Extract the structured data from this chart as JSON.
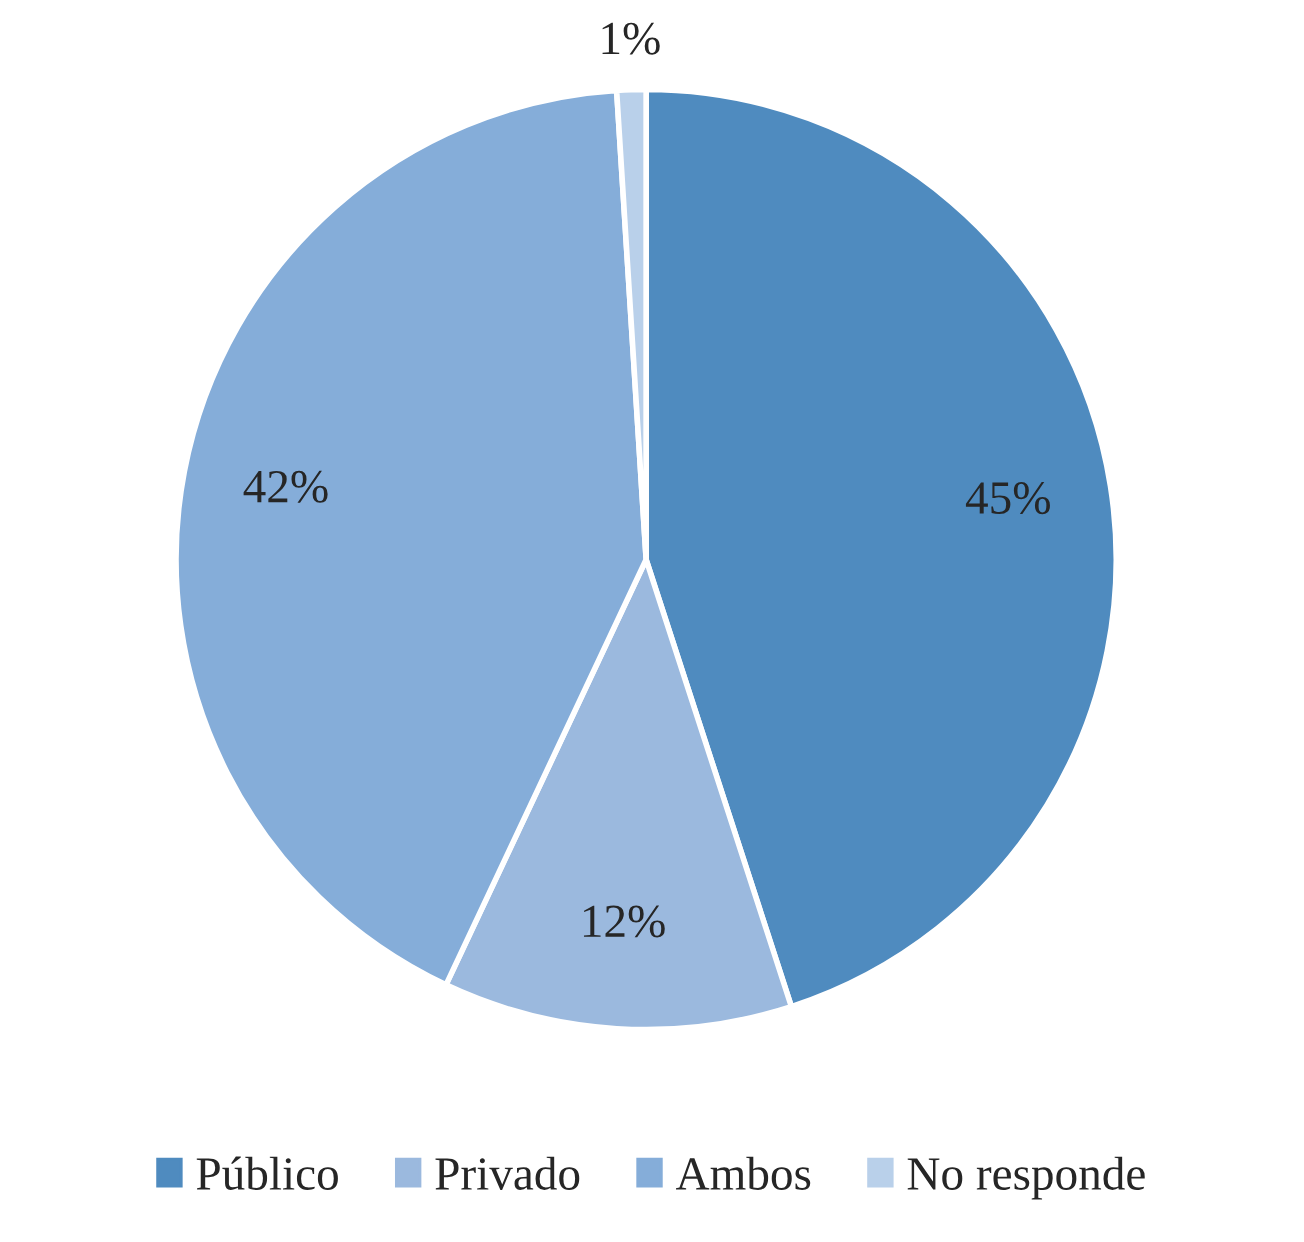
{
  "chart_data": {
    "type": "pie",
    "categories": [
      "Público",
      "Privado",
      "Ambos",
      "No responde"
    ],
    "values": [
      45,
      12,
      42,
      1
    ],
    "colors": [
      "#4f8bbf",
      "#9bb9de",
      "#85add9",
      "#b9d0ea"
    ],
    "value_labels": [
      "45%",
      "12%",
      "42%",
      "1%"
    ],
    "legend": "bottom"
  }
}
